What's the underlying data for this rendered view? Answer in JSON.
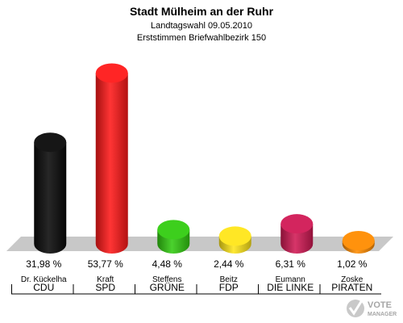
{
  "header": {
    "title": "Stadt Mülheim an der Ruhr",
    "subtitle1": "Landtagswahl 09.05.2010",
    "subtitle2": "Erststimmen Briefwahlbezirk 150"
  },
  "logo": {
    "line1": "VOTE",
    "line2": "MANAGER"
  },
  "chart_data": {
    "type": "bar",
    "title": "Stadt Mülheim an der Ruhr",
    "subtitle": "Landtagswahl 09.05.2010 · Erststimmen Briefwahlbezirk 150",
    "categories": [
      "CDU",
      "SPD",
      "GRÜNE",
      "FDP",
      "DIE LINKE",
      "PIRATEN"
    ],
    "candidates": [
      "Dr. Kückelha",
      "Kraft",
      "Steffens",
      "Beitz",
      "Eumann",
      "Zoske"
    ],
    "values": [
      31.98,
      53.77,
      4.48,
      2.44,
      6.31,
      1.02
    ],
    "value_labels": [
      "31,98 %",
      "53,77 %",
      "4,48 %",
      "2,44 %",
      "6,31 %",
      "1,02 %"
    ],
    "colors": [
      "#0a0a0a",
      "#ff1a1a",
      "#33cc11",
      "#ffe619",
      "#d11a55",
      "#ff8c00"
    ],
    "ylim": [
      0,
      60
    ],
    "grid": false,
    "legend": "none"
  }
}
